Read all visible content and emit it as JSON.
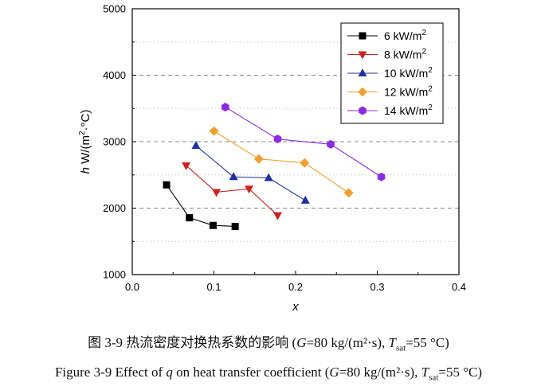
{
  "chart_data": {
    "type": "line",
    "xlabel": "x",
    "ylabel_italic": "h",
    "ylabel_rest": " W/(m",
    "ylabel_sup": "2",
    "ylabel_end": "·°C)",
    "xlim": [
      0.0,
      0.4
    ],
    "ylim": [
      1000,
      5000
    ],
    "xticks": [
      "0.0",
      "0.1",
      "0.2",
      "0.3",
      "0.4"
    ],
    "yticks": [
      "1000",
      "2000",
      "3000",
      "4000",
      "5000"
    ],
    "grid": "horizontal-dashed",
    "legend_position": "top-right",
    "series": [
      {
        "name": "6 kW/m",
        "name_sup": "2",
        "color": "#000000",
        "marker": "square",
        "x": [
          0.042,
          0.07,
          0.099,
          0.126
        ],
        "y": [
          2350,
          1855,
          1740,
          1725
        ]
      },
      {
        "name": "8 kW/m",
        "name_sup": "2",
        "color": "#cc2222",
        "marker": "triangle-down",
        "x": [
          0.066,
          0.103,
          0.143,
          0.178
        ],
        "y": [
          2640,
          2240,
          2290,
          1890
        ]
      },
      {
        "name": "10 kW/m",
        "name_sup": "2",
        "color": "#1f2f9e",
        "marker": "triangle-up",
        "x": [
          0.078,
          0.124,
          0.167,
          0.212
        ],
        "y": [
          2940,
          2470,
          2455,
          2115
        ]
      },
      {
        "name": "12 kW/m",
        "name_sup": "2",
        "color": "#f0a030",
        "marker": "diamond",
        "x": [
          0.1,
          0.155,
          0.211,
          0.265
        ],
        "y": [
          3160,
          2740,
          2680,
          2230
        ]
      },
      {
        "name": "14 kW/m",
        "name_sup": "2",
        "color": "#8a2be2",
        "marker": "hexagon",
        "x": [
          0.114,
          0.178,
          0.243,
          0.305
        ],
        "y": [
          3520,
          3040,
          2960,
          2470
        ]
      }
    ]
  },
  "caption_cn": "图 3-9  热流密度对换热系数的影响  (G=80 kg/(m²·s), Tsat=55 °C)",
  "caption_en": "Figure 3-9 Effect of q on heat transfer coefficient (G=80 kg/(m²·s), Tsat=55 °C)"
}
